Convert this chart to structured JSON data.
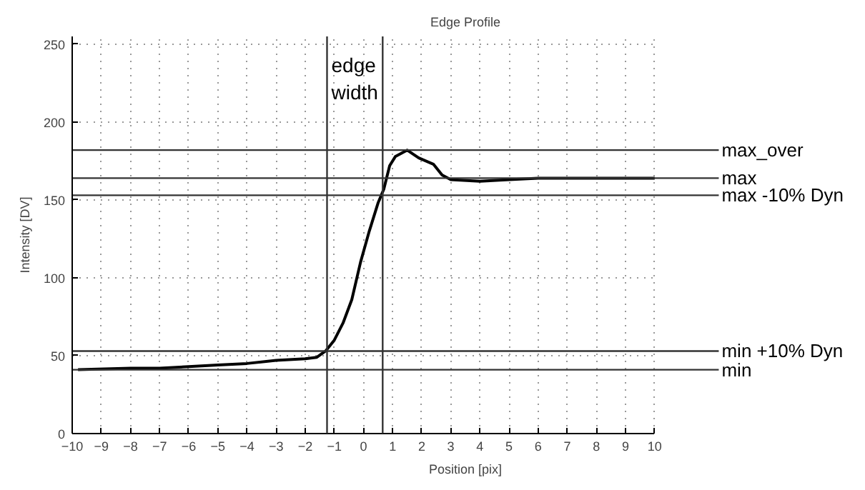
{
  "chart_data": {
    "type": "line",
    "title": "Edge Profile",
    "xlabel": "Position [pix]",
    "ylabel": "Intensity [DV]",
    "x": [
      -9.8,
      -8,
      -7,
      -6,
      -5,
      -4,
      -3,
      -2,
      -1.6,
      -1.3,
      -1.0,
      -0.7,
      -0.4,
      -0.1,
      0.2,
      0.5,
      0.7,
      0.9,
      1.1,
      1.5,
      1.9,
      2.4,
      2.7,
      3,
      4,
      5,
      6,
      7,
      8,
      9,
      10
    ],
    "series": [
      {
        "color": "#000000",
        "values": [
          41,
          42,
          42,
          43,
          44,
          45,
          47,
          48,
          49,
          53,
          60,
          71,
          86,
          110,
          130,
          148,
          157,
          172,
          178,
          182,
          177,
          173,
          166,
          163,
          162,
          163,
          164,
          164,
          164,
          164,
          164
        ]
      }
    ],
    "xlim": [
      -10,
      10
    ],
    "ylim": [
      0,
      255
    ],
    "xticks": [
      -10,
      -9,
      -8,
      -7,
      -6,
      -5,
      -4,
      -3,
      -2,
      -1,
      0,
      1,
      2,
      3,
      4,
      5,
      6,
      7,
      8,
      9,
      10
    ],
    "yticks": [
      0,
      50,
      100,
      150,
      200,
      250
    ],
    "grid": true,
    "line_style": "solid",
    "marker": "none",
    "ref_lines": [
      {
        "axis": "y",
        "value": 182,
        "label": "max_over",
        "color": "#333333"
      },
      {
        "axis": "y",
        "value": 164,
        "label": "max",
        "color": "#333333"
      },
      {
        "axis": "y",
        "value": 153,
        "label": "max -10% Dyn",
        "color": "#333333"
      },
      {
        "axis": "y",
        "value": 53,
        "label": "min +10% Dyn",
        "color": "#333333"
      },
      {
        "axis": "y",
        "value": 41,
        "label": "min",
        "color": "#333333"
      },
      {
        "axis": "x",
        "value": -1.25,
        "label": null,
        "color": "#333333"
      },
      {
        "axis": "x",
        "value": 0.66,
        "label": null,
        "color": "#333333"
      }
    ],
    "annotations": [
      {
        "text": "edge width",
        "x": -1.25,
        "y": 228
      }
    ]
  }
}
